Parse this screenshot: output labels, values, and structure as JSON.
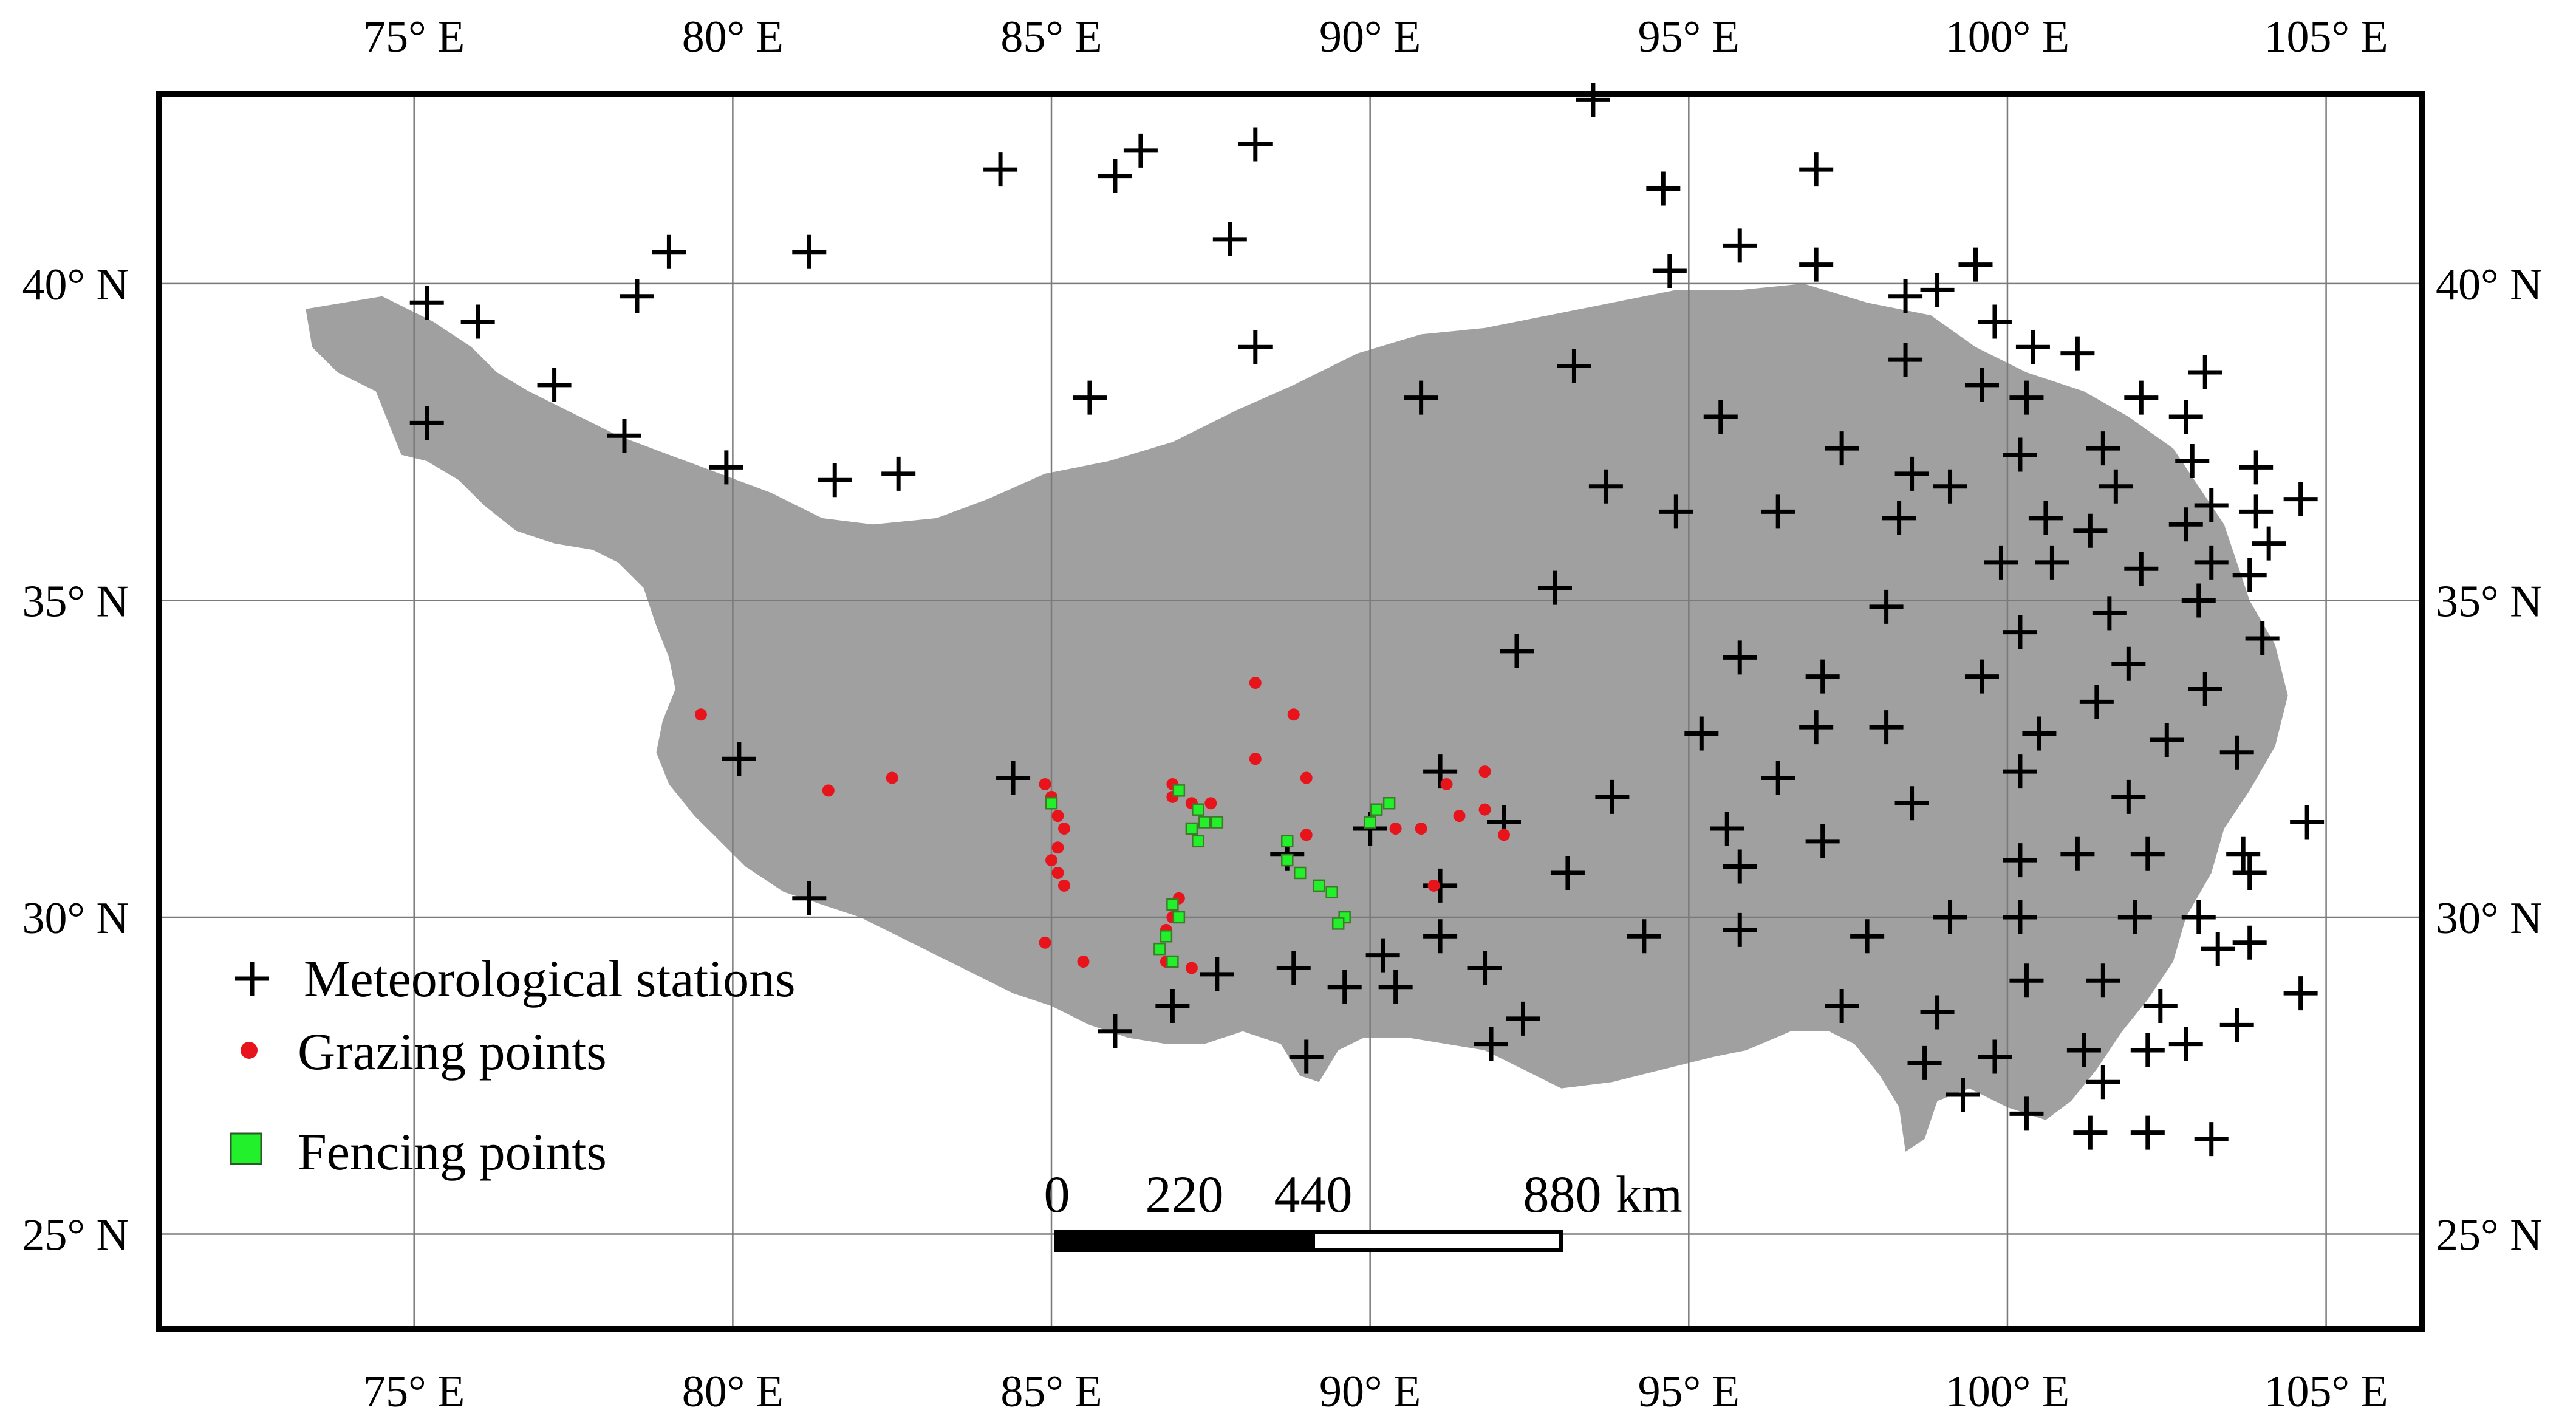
{
  "map": {
    "lon_range": [
      71,
      106.5
    ],
    "lat_range": [
      23.5,
      43
    ],
    "colors": {
      "plateau": "#a0a0a0",
      "grid": "#7a7a7a",
      "station": "#000000",
      "grazing": "#e8141c",
      "fencing": "#22f02a"
    },
    "lon_ticks": [
      {
        "value": 75,
        "label": "75° E"
      },
      {
        "value": 80,
        "label": "80° E"
      },
      {
        "value": 85,
        "label": "85° E"
      },
      {
        "value": 90,
        "label": "90° E"
      },
      {
        "value": 95,
        "label": "95° E"
      },
      {
        "value": 100,
        "label": "100° E"
      },
      {
        "value": 105,
        "label": "105° E"
      }
    ],
    "lat_ticks": [
      {
        "value": 40,
        "label": "40° N"
      },
      {
        "value": 35,
        "label": "35° N"
      },
      {
        "value": 30,
        "label": "30° N"
      },
      {
        "value": 25,
        "label": "25° N"
      }
    ],
    "plateau_outline": [
      [
        73.3,
        39.6
      ],
      [
        74.5,
        39.8
      ],
      [
        75.3,
        39.4
      ],
      [
        75.9,
        39.0
      ],
      [
        76.3,
        38.6
      ],
      [
        76.8,
        38.3
      ],
      [
        77.4,
        38.0
      ],
      [
        78.2,
        37.6
      ],
      [
        79.0,
        37.3
      ],
      [
        79.8,
        37.0
      ],
      [
        80.6,
        36.7
      ],
      [
        81.4,
        36.3
      ],
      [
        82.2,
        36.2
      ],
      [
        83.2,
        36.3
      ],
      [
        84.0,
        36.6
      ],
      [
        84.9,
        37.0
      ],
      [
        85.9,
        37.2
      ],
      [
        86.9,
        37.5
      ],
      [
        87.9,
        38.0
      ],
      [
        88.8,
        38.4
      ],
      [
        89.8,
        38.9
      ],
      [
        90.8,
        39.2
      ],
      [
        91.8,
        39.3
      ],
      [
        92.8,
        39.5
      ],
      [
        93.8,
        39.7
      ],
      [
        94.8,
        39.9
      ],
      [
        95.8,
        39.9
      ],
      [
        96.8,
        40.0
      ],
      [
        97.8,
        39.7
      ],
      [
        98.8,
        39.5
      ],
      [
        99.5,
        39.0
      ],
      [
        100.3,
        38.6
      ],
      [
        101.2,
        38.3
      ],
      [
        101.9,
        37.9
      ],
      [
        102.6,
        37.4
      ],
      [
        103.0,
        36.8
      ],
      [
        103.4,
        36.2
      ],
      [
        103.6,
        35.6
      ],
      [
        103.8,
        35.0
      ],
      [
        104.2,
        34.3
      ],
      [
        104.4,
        33.5
      ],
      [
        104.2,
        32.7
      ],
      [
        103.8,
        32.0
      ],
      [
        103.4,
        31.4
      ],
      [
        103.2,
        30.7
      ],
      [
        102.8,
        30.0
      ],
      [
        102.6,
        29.3
      ],
      [
        102.2,
        28.7
      ],
      [
        101.8,
        28.2
      ],
      [
        101.4,
        27.6
      ],
      [
        101.0,
        27.1
      ],
      [
        100.6,
        26.8
      ],
      [
        100.0,
        27.0
      ],
      [
        99.4,
        27.3
      ],
      [
        98.9,
        27.1
      ],
      [
        98.7,
        26.5
      ],
      [
        98.4,
        26.3
      ],
      [
        98.3,
        27.0
      ],
      [
        98.0,
        27.5
      ],
      [
        97.6,
        28.0
      ],
      [
        97.2,
        28.2
      ],
      [
        96.6,
        28.2
      ],
      [
        95.9,
        27.9
      ],
      [
        95.4,
        27.8
      ],
      [
        94.6,
        27.6
      ],
      [
        93.8,
        27.4
      ],
      [
        93.0,
        27.3
      ],
      [
        92.4,
        27.6
      ],
      [
        91.8,
        27.9
      ],
      [
        91.2,
        28.0
      ],
      [
        90.6,
        28.1
      ],
      [
        89.9,
        28.1
      ],
      [
        89.5,
        27.9
      ],
      [
        89.2,
        27.4
      ],
      [
        88.9,
        27.5
      ],
      [
        88.6,
        28.0
      ],
      [
        88.0,
        28.2
      ],
      [
        87.4,
        28.0
      ],
      [
        86.8,
        28.0
      ],
      [
        86.2,
        28.1
      ],
      [
        85.6,
        28.3
      ],
      [
        85.0,
        28.6
      ],
      [
        84.4,
        28.8
      ],
      [
        83.8,
        29.1
      ],
      [
        83.2,
        29.4
      ],
      [
        82.6,
        29.7
      ],
      [
        82.0,
        30.0
      ],
      [
        81.4,
        30.2
      ],
      [
        80.8,
        30.4
      ],
      [
        80.2,
        30.8
      ],
      [
        79.8,
        31.2
      ],
      [
        79.4,
        31.6
      ],
      [
        79.0,
        32.1
      ],
      [
        78.8,
        32.6
      ],
      [
        78.9,
        33.1
      ],
      [
        79.1,
        33.6
      ],
      [
        79.0,
        34.1
      ],
      [
        78.8,
        34.6
      ],
      [
        78.6,
        35.2
      ],
      [
        78.2,
        35.6
      ],
      [
        77.8,
        35.8
      ],
      [
        77.2,
        35.9
      ],
      [
        76.6,
        36.1
      ],
      [
        76.1,
        36.5
      ],
      [
        75.7,
        36.9
      ],
      [
        75.2,
        37.2
      ],
      [
        74.8,
        37.3
      ],
      [
        74.6,
        37.8
      ],
      [
        74.4,
        38.3
      ],
      [
        73.8,
        38.6
      ],
      [
        73.4,
        39.0
      ],
      [
        73.3,
        39.6
      ]
    ],
    "stations": [
      [
        75.2,
        39.7
      ],
      [
        76.0,
        39.4
      ],
      [
        75.2,
        37.8
      ],
      [
        77.2,
        38.4
      ],
      [
        78.5,
        39.8
      ],
      [
        79.0,
        40.5
      ],
      [
        78.3,
        37.6
      ],
      [
        79.9,
        37.1
      ],
      [
        81.2,
        40.5
      ],
      [
        81.6,
        36.9
      ],
      [
        82.6,
        37.0
      ],
      [
        84.2,
        41.8
      ],
      [
        86.0,
        41.7
      ],
      [
        86.4,
        42.1
      ],
      [
        87.8,
        40.7
      ],
      [
        88.2,
        42.2
      ],
      [
        88.2,
        39.0
      ],
      [
        85.6,
        38.2
      ],
      [
        90.8,
        38.2
      ],
      [
        93.5,
        42.9
      ],
      [
        94.6,
        41.5
      ],
      [
        94.7,
        40.2
      ],
      [
        95.8,
        40.6
      ],
      [
        97.0,
        40.3
      ],
      [
        97.0,
        41.8
      ],
      [
        98.4,
        39.8
      ],
      [
        98.9,
        39.9
      ],
      [
        99.5,
        40.3
      ],
      [
        99.8,
        39.4
      ],
      [
        100.4,
        39.0
      ],
      [
        101.1,
        38.9
      ],
      [
        93.2,
        38.7
      ],
      [
        95.5,
        37.9
      ],
      [
        94.8,
        36.4
      ],
      [
        96.4,
        36.4
      ],
      [
        97.4,
        37.4
      ],
      [
        98.3,
        36.3
      ],
      [
        98.4,
        38.8
      ],
      [
        98.5,
        37.0
      ],
      [
        99.1,
        36.8
      ],
      [
        99.6,
        38.4
      ],
      [
        100.2,
        37.3
      ],
      [
        100.3,
        38.2
      ],
      [
        102.1,
        38.2
      ],
      [
        102.8,
        37.9
      ],
      [
        103.1,
        38.6
      ],
      [
        101.5,
        37.4
      ],
      [
        101.7,
        36.8
      ],
      [
        102.9,
        37.2
      ],
      [
        103.2,
        36.5
      ],
      [
        103.9,
        37.1
      ],
      [
        104.6,
        36.6
      ],
      [
        103.9,
        36.4
      ],
      [
        104.1,
        35.9
      ],
      [
        100.6,
        36.3
      ],
      [
        101.3,
        36.1
      ],
      [
        102.8,
        36.2
      ],
      [
        99.9,
        35.6
      ],
      [
        100.7,
        35.6
      ],
      [
        102.1,
        35.5
      ],
      [
        103.2,
        35.6
      ],
      [
        103.8,
        35.4
      ],
      [
        100.2,
        34.5
      ],
      [
        101.6,
        34.8
      ],
      [
        103.0,
        35.0
      ],
      [
        104.0,
        34.4
      ],
      [
        92.9,
        35.2
      ],
      [
        93.7,
        36.8
      ],
      [
        98.1,
        34.9
      ],
      [
        92.3,
        34.2
      ],
      [
        95.8,
        34.1
      ],
      [
        97.1,
        33.8
      ],
      [
        99.6,
        33.8
      ],
      [
        101.9,
        34.0
      ],
      [
        103.1,
        33.6
      ],
      [
        97.0,
        33.0
      ],
      [
        98.1,
        33.0
      ],
      [
        95.2,
        32.9
      ],
      [
        100.5,
        32.9
      ],
      [
        102.5,
        32.8
      ],
      [
        101.4,
        33.4
      ],
      [
        103.6,
        32.6
      ],
      [
        96.4,
        32.2
      ],
      [
        100.2,
        32.3
      ],
      [
        98.5,
        31.8
      ],
      [
        101.9,
        31.9
      ],
      [
        93.8,
        31.9
      ],
      [
        95.6,
        31.4
      ],
      [
        97.1,
        31.2
      ],
      [
        91.1,
        32.3
      ],
      [
        92.1,
        31.5
      ],
      [
        90.0,
        31.4
      ],
      [
        88.7,
        31.0
      ],
      [
        91.1,
        30.5
      ],
      [
        95.8,
        30.8
      ],
      [
        100.2,
        30.9
      ],
      [
        101.1,
        31.0
      ],
      [
        102.2,
        31.0
      ],
      [
        103.8,
        30.7
      ],
      [
        104.7,
        31.5
      ],
      [
        103.7,
        31.0
      ],
      [
        99.1,
        30.0
      ],
      [
        100.2,
        30.0
      ],
      [
        102.0,
        30.0
      ],
      [
        103.0,
        30.0
      ],
      [
        80.1,
        32.5
      ],
      [
        84.4,
        32.2
      ],
      [
        81.2,
        30.3
      ],
      [
        93.1,
        30.7
      ],
      [
        89.6,
        28.9
      ],
      [
        88.8,
        29.2
      ],
      [
        89.0,
        27.8
      ],
      [
        90.4,
        28.9
      ],
      [
        90.2,
        29.4
      ],
      [
        91.1,
        29.7
      ],
      [
        91.8,
        29.2
      ],
      [
        92.4,
        28.4
      ],
      [
        91.9,
        28.0
      ],
      [
        87.6,
        29.1
      ],
      [
        86.9,
        28.6
      ],
      [
        86.0,
        28.2
      ],
      [
        94.3,
        29.7
      ],
      [
        95.8,
        29.8
      ],
      [
        97.8,
        29.7
      ],
      [
        97.4,
        28.6
      ],
      [
        98.9,
        28.5
      ],
      [
        98.7,
        27.7
      ],
      [
        99.8,
        27.8
      ],
      [
        99.3,
        27.2
      ],
      [
        100.3,
        26.9
      ],
      [
        101.3,
        26.6
      ],
      [
        102.2,
        26.6
      ],
      [
        103.2,
        26.5
      ],
      [
        101.2,
        27.9
      ],
      [
        101.5,
        27.4
      ],
      [
        102.2,
        27.9
      ],
      [
        102.8,
        28.0
      ],
      [
        102.4,
        28.6
      ],
      [
        103.6,
        28.3
      ],
      [
        103.3,
        29.5
      ],
      [
        103.8,
        29.6
      ],
      [
        104.6,
        28.8
      ],
      [
        100.3,
        29.0
      ],
      [
        101.5,
        29.0
      ]
    ],
    "grazing_points": [
      [
        79.5,
        33.2
      ],
      [
        81.5,
        32.0
      ],
      [
        82.5,
        32.2
      ],
      [
        84.9,
        32.1
      ],
      [
        85.0,
        31.9
      ],
      [
        85.1,
        31.6
      ],
      [
        85.2,
        31.4
      ],
      [
        85.1,
        31.1
      ],
      [
        85.0,
        30.9
      ],
      [
        85.1,
        30.7
      ],
      [
        85.2,
        30.5
      ],
      [
        84.9,
        29.6
      ],
      [
        85.5,
        29.3
      ],
      [
        87.0,
        30.3
      ],
      [
        86.9,
        30.0
      ],
      [
        86.8,
        29.8
      ],
      [
        86.7,
        29.5
      ],
      [
        86.8,
        29.3
      ],
      [
        87.2,
        29.2
      ],
      [
        86.9,
        32.1
      ],
      [
        86.9,
        31.9
      ],
      [
        87.2,
        31.8
      ],
      [
        87.5,
        31.8
      ],
      [
        88.2,
        33.7
      ],
      [
        88.8,
        33.2
      ],
      [
        88.2,
        32.5
      ],
      [
        89.0,
        32.2
      ],
      [
        89.0,
        31.3
      ],
      [
        90.4,
        31.4
      ],
      [
        90.8,
        31.4
      ],
      [
        91.2,
        32.1
      ],
      [
        91.4,
        31.6
      ],
      [
        91.8,
        32.3
      ],
      [
        91.8,
        31.7
      ],
      [
        92.1,
        31.3
      ],
      [
        91.0,
        30.5
      ]
    ],
    "fencing_points": [
      [
        85.0,
        31.8
      ],
      [
        87.0,
        32.0
      ],
      [
        87.3,
        31.7
      ],
      [
        87.4,
        31.5
      ],
      [
        87.6,
        31.5
      ],
      [
        87.2,
        31.4
      ],
      [
        87.3,
        31.2
      ],
      [
        86.9,
        30.2
      ],
      [
        87.0,
        30.0
      ],
      [
        86.8,
        29.7
      ],
      [
        86.7,
        29.5
      ],
      [
        86.9,
        29.3
      ],
      [
        88.7,
        31.2
      ],
      [
        88.7,
        30.9
      ],
      [
        88.9,
        30.7
      ],
      [
        89.2,
        30.5
      ],
      [
        89.4,
        30.4
      ],
      [
        89.6,
        30.0
      ],
      [
        89.5,
        29.9
      ],
      [
        90.1,
        31.7
      ],
      [
        90.3,
        31.8
      ],
      [
        90.0,
        31.5
      ]
    ]
  },
  "legend": {
    "stations_label": "Meteorological stations",
    "grazing_label": "Grazing points",
    "fencing_label": "Fencing points"
  },
  "scale_bar": {
    "labels": [
      "0",
      "220",
      "440",
      "880"
    ],
    "unit": "km"
  }
}
